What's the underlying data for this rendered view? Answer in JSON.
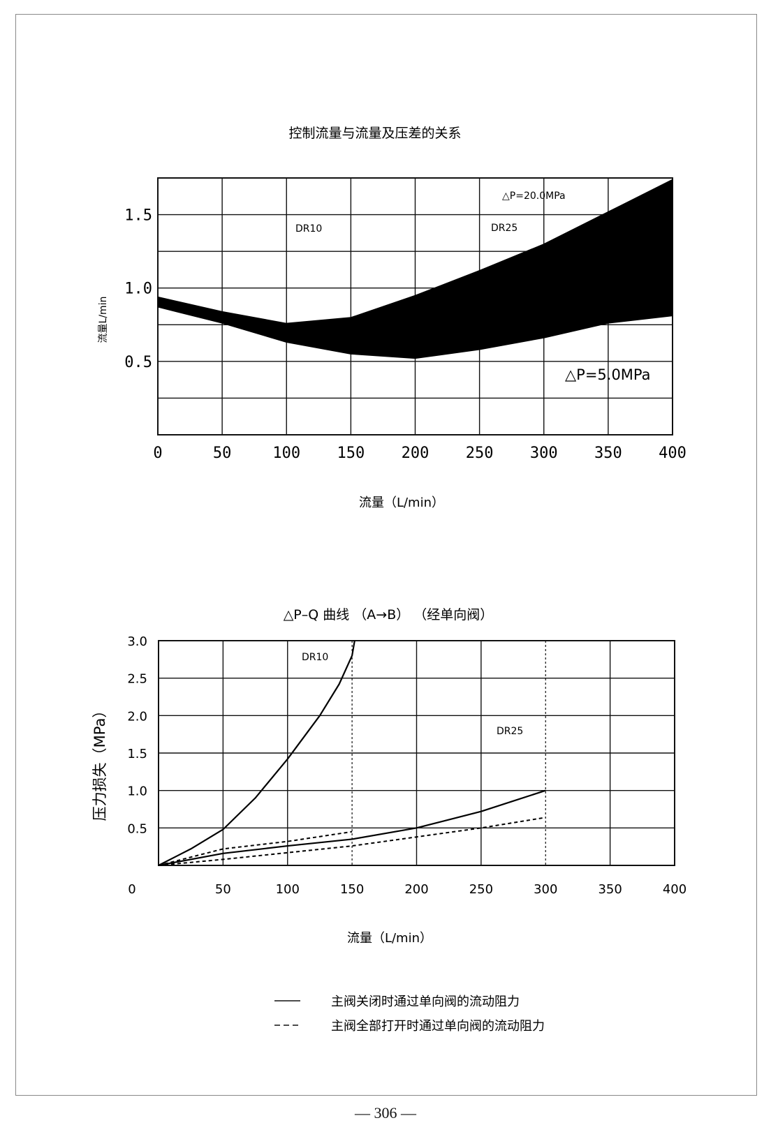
{
  "page_number": "— 306 —",
  "chart_data": [
    {
      "type": "area",
      "title": "控制流量与流量及压差的关系",
      "xlabel": "流量（L/min）",
      "ylabel": "流量L/min",
      "xlim": [
        0,
        400
      ],
      "ylim": [
        0,
        1.75
      ],
      "x_ticks": [
        "0",
        "50",
        "100",
        "150",
        "200",
        "250",
        "300",
        "350",
        "400"
      ],
      "y_ticks": [
        "1.5",
        "1.0",
        "0.5"
      ],
      "annotations": {
        "dr10": "DR10",
        "dr25": "DR25",
        "dp_high": "△P=20.0MPa",
        "dp_low": "△P=5.0MPa"
      },
      "series": [
        {
          "name": "△P=20.0MPa",
          "x": [
            0,
            50,
            100,
            150,
            200,
            250,
            300,
            350,
            400
          ],
          "values": [
            0.94,
            0.84,
            0.76,
            0.8,
            0.95,
            1.12,
            1.3,
            1.52,
            1.74
          ]
        },
        {
          "name": "△P=5.0MPa",
          "x": [
            0,
            50,
            100,
            150,
            200,
            250,
            300,
            350,
            400
          ],
          "values": [
            0.87,
            0.76,
            0.63,
            0.55,
            0.52,
            0.58,
            0.66,
            0.76,
            0.81
          ]
        }
      ],
      "grid": true
    },
    {
      "type": "line",
      "title": "△P–Q 曲线 （A→B） （经单向阀）",
      "xlabel": "流量（L/min）",
      "ylabel": "压力损失（MPa）",
      "xlim": [
        0,
        400
      ],
      "ylim": [
        0,
        3.0
      ],
      "x_ticks": [
        "0",
        "50",
        "100",
        "150",
        "200",
        "250",
        "300",
        "350",
        "400"
      ],
      "y_ticks": [
        "3.0",
        "2.5",
        "2.0",
        "1.5",
        "1.0",
        "0.5"
      ],
      "annotations": {
        "dr10": "DR10",
        "dr25": "DR25"
      },
      "series": [
        {
          "name": "DR10 主阀关闭时通过单向阀的流动阻力",
          "style": "solid",
          "x": [
            0,
            25,
            50,
            75,
            100,
            125,
            140,
            150,
            152
          ],
          "values": [
            0,
            0.22,
            0.48,
            0.9,
            1.42,
            2.0,
            2.42,
            2.8,
            3.0
          ]
        },
        {
          "name": "DR10 主阀全部打开时通过单向阀的流动阻力",
          "style": "dashed",
          "x": [
            0,
            50,
            100,
            150
          ],
          "values": [
            0,
            0.22,
            0.32,
            0.45
          ]
        },
        {
          "name": "DR25 主阀关闭时通过单向阀的流动阻力",
          "style": "solid",
          "x": [
            0,
            50,
            100,
            150,
            200,
            250,
            300
          ],
          "values": [
            0,
            0.16,
            0.26,
            0.35,
            0.5,
            0.72,
            1.0
          ]
        },
        {
          "name": "DR25 主阀全部打开时通过单向阀的流动阻力",
          "style": "dashed",
          "x": [
            0,
            50,
            100,
            150,
            200,
            250,
            300
          ],
          "values": [
            0,
            0.08,
            0.17,
            0.26,
            0.38,
            0.5,
            0.64
          ]
        }
      ],
      "vlines_x": [
        150,
        300
      ],
      "grid": true
    }
  ],
  "legend": [
    {
      "style": "solid",
      "label": "主阀关闭时通过单向阀的流动阻力"
    },
    {
      "style": "dashed",
      "label": "主阀全部打开时通过单向阀的流动阻力"
    }
  ]
}
